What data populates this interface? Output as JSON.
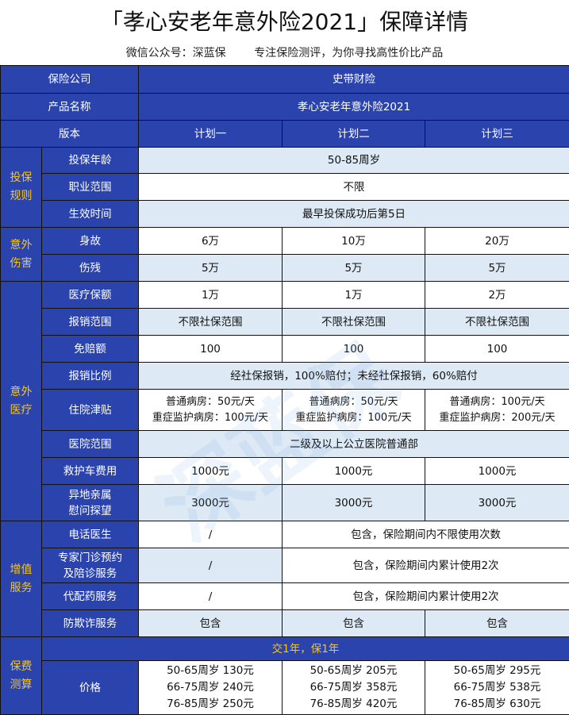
{
  "title": "「孝心安老年意外险2021」保障详情",
  "subtitle": "微信公众号：深蓝保        专注保险测评，为你寻找高性价比产品",
  "header": {
    "company_label": "保险公司",
    "company": "史带财险",
    "product_label": "产品名称",
    "product": "孝心安老年意外险2021",
    "version_label": "版本",
    "plans": [
      "计划一",
      "计划二",
      "计划三"
    ]
  },
  "sections": {
    "rules": "投保\n规则",
    "accident": "意外\n伤害",
    "medical": "意外\n医疗",
    "service": "增值\n服务",
    "premium": "保费\n测算"
  },
  "rows": {
    "age": {
      "label": "投保年龄",
      "value": "50-85周岁"
    },
    "job": {
      "label": "职业范围",
      "value": "不限"
    },
    "effective": {
      "label": "生效时间",
      "value": "最早投保成功后第5日"
    },
    "death": {
      "label": "身故",
      "values": [
        "6万",
        "10万",
        "20万"
      ]
    },
    "disability": {
      "label": "伤残",
      "values": [
        "5万",
        "5万",
        "5万"
      ]
    },
    "med_amount": {
      "label": "医疗保额",
      "values": [
        "1万",
        "1万",
        "2万"
      ]
    },
    "scope": {
      "label": "报销范围",
      "values": [
        "不限社保范围",
        "不限社保范围",
        "不限社保范围"
      ]
    },
    "deductible": {
      "label": "免赔额",
      "values": [
        "100",
        "100",
        "100"
      ]
    },
    "ratio": {
      "label": "报销比例",
      "value": "经社保报销，100%赔付；未经社保报销，60%赔付"
    },
    "allowance": {
      "label": "住院津贴",
      "values": [
        "普通病房：50元/天\n重症监护病房：100元/天",
        "普通病房：50元/天\n重症监护病房：100元/天",
        "普通病房：100元/天\n重症监护病房：200元/天"
      ]
    },
    "hospital": {
      "label": "医院范围",
      "value": "二级及以上公立医院普通部"
    },
    "ambulance": {
      "label": "救护车费用",
      "values": [
        "1000元",
        "1000元",
        "1000元"
      ]
    },
    "visit": {
      "label": "异地亲属\n慰问探望",
      "values": [
        "3000元",
        "3000元",
        "3000元"
      ]
    },
    "phone_doctor": {
      "label": "电话医生",
      "plan1": "/",
      "plan23": "包含，保险期间内不限使用次数"
    },
    "expert": {
      "label": "专家门诊预约\n及陪诊服务",
      "plan1": "/",
      "plan23": "包含，保险期间内累计使用2次"
    },
    "drug": {
      "label": "代配药服务",
      "plan1": "/",
      "plan23": "包含，保险期间内累计使用2次"
    },
    "antifraud": {
      "label": "防欺诈服务",
      "values": [
        "包含",
        "包含",
        "包含"
      ]
    },
    "term": "交1年，保1年",
    "price": {
      "label": "价格",
      "values": [
        "50-65周岁 130元\n66-75周岁 240元\n76-85周岁 250元",
        "50-65周岁 205元\n66-75周岁 358元\n76-85周岁 420元",
        "50-65周岁 295元\n66-75周岁 538元\n76-85周岁 630元"
      ]
    }
  },
  "colors": {
    "header_blue": "#2a43ad",
    "section_yellow": "#f5c518",
    "row_light": "#dde9f5"
  }
}
